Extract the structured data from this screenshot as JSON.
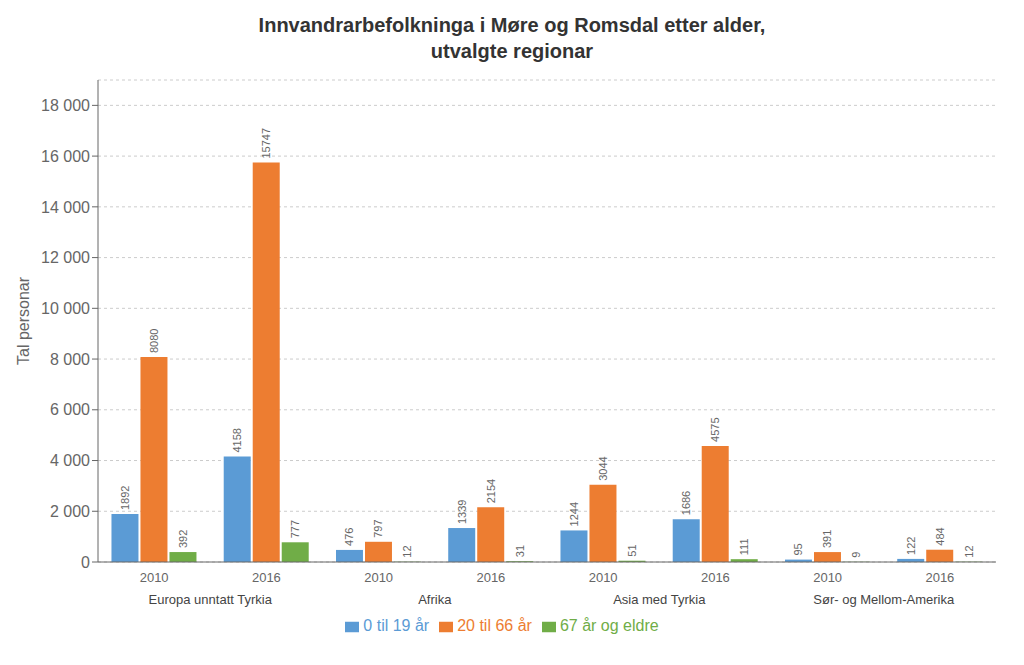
{
  "chart_data": {
    "type": "bar",
    "title": "Innvandrarbefolkninga i Møre og Romsdal etter alder,\nutvalgte regionar",
    "y_label": "Tal personar",
    "categories": [
      "2010",
      "2016",
      "2010",
      "2016",
      "2010",
      "2016",
      "2010",
      "2016"
    ],
    "annotations": [
      "Europa unntatt Tyrkia",
      "Afrika",
      "Asia med Tyrkia",
      "Sør- og Mellom-Amerika"
    ],
    "series": [
      {
        "name": "0 til 19 år",
        "color": "#5b9bd5",
        "values": [
          1892,
          4158,
          476,
          1339,
          1244,
          1686,
          95,
          122
        ]
      },
      {
        "name": "20 til 66 år",
        "color": "#ed7d31",
        "values": [
          8080,
          15747,
          797,
          2154,
          3044,
          4575,
          391,
          484
        ]
      },
      {
        "name": "67 år og eldre",
        "color": "#70ad47",
        "values": [
          392,
          777,
          12,
          31,
          51,
          111,
          9,
          12
        ]
      }
    ],
    "ylim": [
      0,
      19000
    ],
    "yticks": [
      0,
      {
        "value": 2000,
        "label": "2 000"
      },
      {
        "value": 4000,
        "label": "4 000"
      },
      {
        "value": 6000,
        "label": "6 000"
      },
      {
        "value": 8000,
        "label": "8 000"
      },
      {
        "value": 10000,
        "label": "10 000"
      },
      {
        "value": 12000,
        "label": "12 000"
      },
      {
        "value": 14000,
        "label": "14 000"
      },
      {
        "value": 16000,
        "label": "16 000"
      },
      {
        "value": 18000,
        "label": "18 000"
      }
    ],
    "grid": true,
    "legend": "bottom",
    "data_labels": true
  }
}
